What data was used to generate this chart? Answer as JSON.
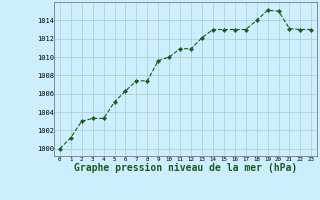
{
  "x": [
    0,
    1,
    2,
    3,
    4,
    5,
    6,
    7,
    8,
    9,
    10,
    11,
    12,
    13,
    14,
    15,
    16,
    17,
    18,
    19,
    20,
    21,
    22,
    23
  ],
  "y": [
    1000.0,
    1001.2,
    1003.0,
    1003.3,
    1003.3,
    1005.1,
    1006.3,
    1007.4,
    1007.4,
    1009.6,
    1010.0,
    1010.9,
    1010.9,
    1012.1,
    1013.0,
    1013.0,
    1013.0,
    1013.0,
    1014.0,
    1015.1,
    1015.0,
    1013.1,
    1013.0,
    1013.0
  ],
  "line_color": "#1a5c1a",
  "marker": "D",
  "marker_size": 2.2,
  "bg_color": "#cceeff",
  "grid_color": "#aacccc",
  "xlabel": "Graphe pression niveau de la mer (hPa)",
  "xlabel_fontsize": 7,
  "xlabel_color": "#1a5c1a",
  "yticks": [
    1000,
    1002,
    1004,
    1006,
    1008,
    1010,
    1012,
    1014
  ],
  "ylim": [
    999.2,
    1016.0
  ],
  "xticks": [
    0,
    1,
    2,
    3,
    4,
    5,
    6,
    7,
    8,
    9,
    10,
    11,
    12,
    13,
    14,
    15,
    16,
    17,
    18,
    19,
    20,
    21,
    22,
    23
  ],
  "xlim": [
    -0.5,
    23.5
  ]
}
